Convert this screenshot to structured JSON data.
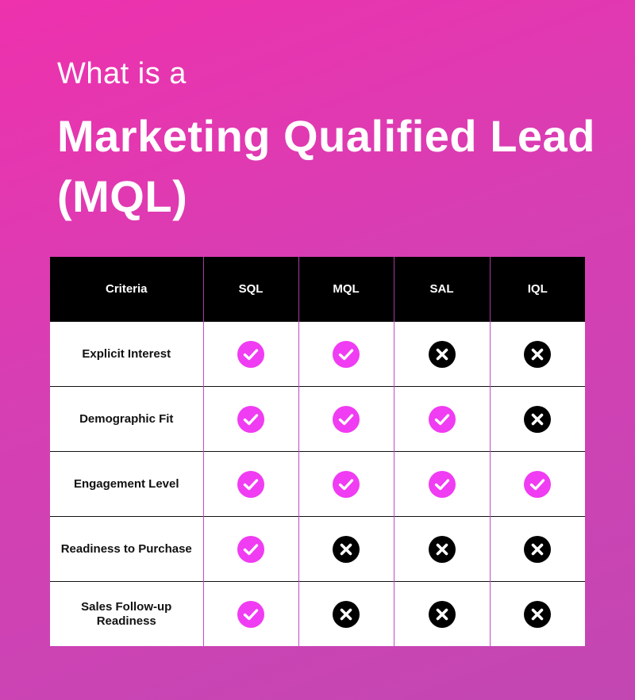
{
  "header": {
    "subtitle": "What is a",
    "title": "Marketing Qualified Lead (MQL)"
  },
  "colors": {
    "check": "#f03cf2",
    "cross": "#000000",
    "background_top": "#ee31ad",
    "background_bottom": "#c247b3"
  },
  "table": {
    "columns": [
      "Criteria",
      "SQL",
      "MQL",
      "SAL",
      "IQL"
    ],
    "rows": [
      {
        "criteria": "Explicit Interest",
        "values": [
          "check",
          "check",
          "cross",
          "cross"
        ]
      },
      {
        "criteria": "Demographic Fit",
        "values": [
          "check",
          "check",
          "check",
          "cross"
        ]
      },
      {
        "criteria": "Engagement Level",
        "values": [
          "check",
          "check",
          "check",
          "check"
        ]
      },
      {
        "criteria": "Readiness to Purchase",
        "values": [
          "check",
          "cross",
          "cross",
          "cross"
        ]
      },
      {
        "criteria": "Sales Follow-up Readiness",
        "values": [
          "check",
          "cross",
          "cross",
          "cross"
        ]
      }
    ]
  }
}
